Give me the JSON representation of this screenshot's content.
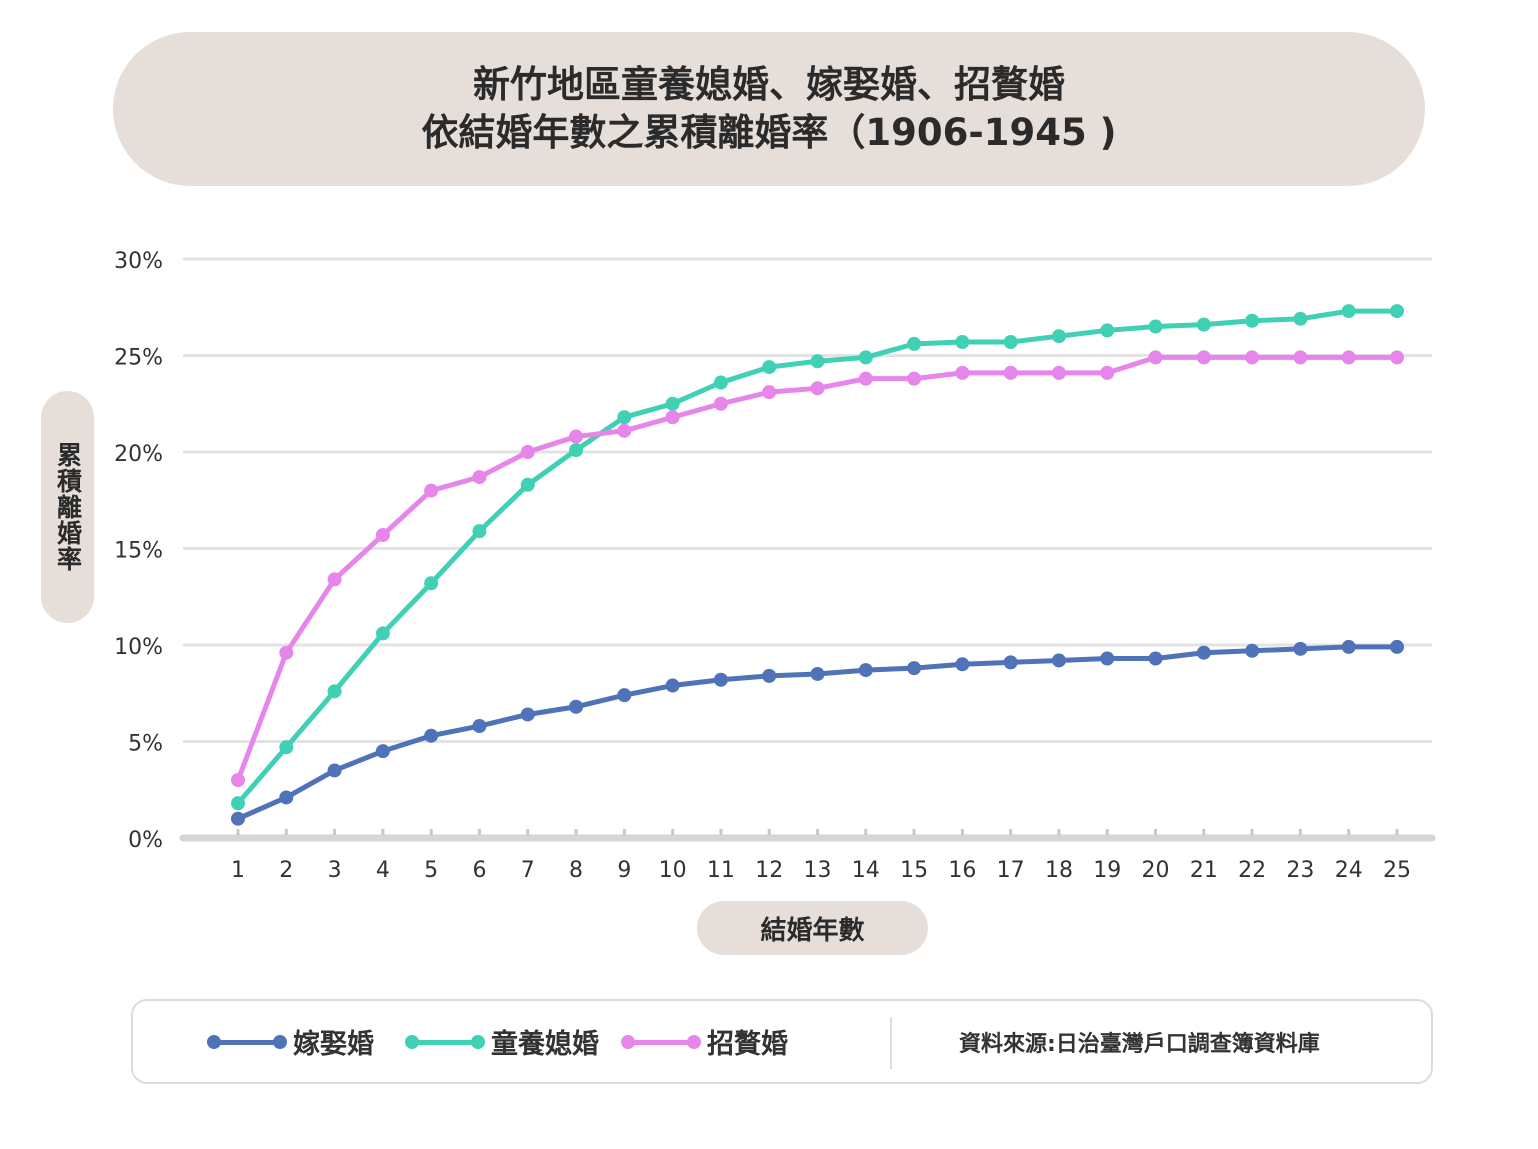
{
  "chart_data": {
    "type": "line",
    "title_lines": [
      "新竹地區童養媳婚、嫁娶婚、招贅婚",
      "依結婚年數之累積離婚率（1906-1945 )"
    ],
    "xlabel": "結婚年數",
    "ylabel": "累積離婚率",
    "x": [
      1,
      2,
      3,
      4,
      5,
      6,
      7,
      8,
      9,
      10,
      11,
      12,
      13,
      14,
      15,
      16,
      17,
      18,
      19,
      20,
      21,
      22,
      23,
      24,
      25
    ],
    "x_tick_labels": [
      "1",
      "2",
      "3",
      "4",
      "5",
      "6",
      "7",
      "8",
      "9",
      "10",
      "11",
      "12",
      "13",
      "14",
      "15",
      "16",
      "17",
      "18",
      "19",
      "20",
      "21",
      "22",
      "23",
      "24",
      "25"
    ],
    "y_ticks": [
      0,
      5,
      10,
      15,
      20,
      25,
      30
    ],
    "y_tick_labels": [
      "0%",
      "5%",
      "10%",
      "15%",
      "20%",
      "25%",
      "30%"
    ],
    "ylim": [
      0,
      30
    ],
    "grid": "horizontal",
    "legend_position": "bottom",
    "series": [
      {
        "name": "嫁娶婚",
        "color": "#4f72b8",
        "values": [
          1.0,
          2.1,
          3.5,
          4.5,
          5.3,
          5.8,
          6.4,
          6.8,
          7.4,
          7.9,
          8.2,
          8.4,
          8.5,
          8.7,
          8.8,
          9.0,
          9.1,
          9.2,
          9.3,
          9.3,
          9.6,
          9.7,
          9.8,
          9.9,
          9.9
        ]
      },
      {
        "name": "童養媳婚",
        "color": "#40d0b4",
        "values": [
          1.8,
          4.7,
          7.6,
          10.6,
          13.2,
          15.9,
          18.3,
          20.1,
          21.8,
          22.5,
          23.6,
          24.4,
          24.7,
          24.9,
          25.6,
          25.7,
          25.7,
          26.0,
          26.3,
          26.5,
          26.6,
          26.8,
          26.9,
          27.3,
          27.3
        ]
      },
      {
        "name": "招贅婚",
        "color": "#e685ea",
        "values": [
          3.0,
          9.6,
          13.4,
          15.7,
          18.0,
          18.7,
          20.0,
          20.8,
          21.1,
          21.8,
          22.5,
          23.1,
          23.3,
          23.8,
          23.8,
          24.1,
          24.1,
          24.1,
          24.1,
          24.9,
          24.9,
          24.9,
          24.9,
          24.9,
          24.9
        ]
      }
    ]
  },
  "legend": {
    "source": "資料來源:日治臺灣戶口調查簿資料庫"
  },
  "colors": {
    "pill_background": "#e6dfd9",
    "grid": "#e3e3e3",
    "axis": "#d6d6d6"
  }
}
